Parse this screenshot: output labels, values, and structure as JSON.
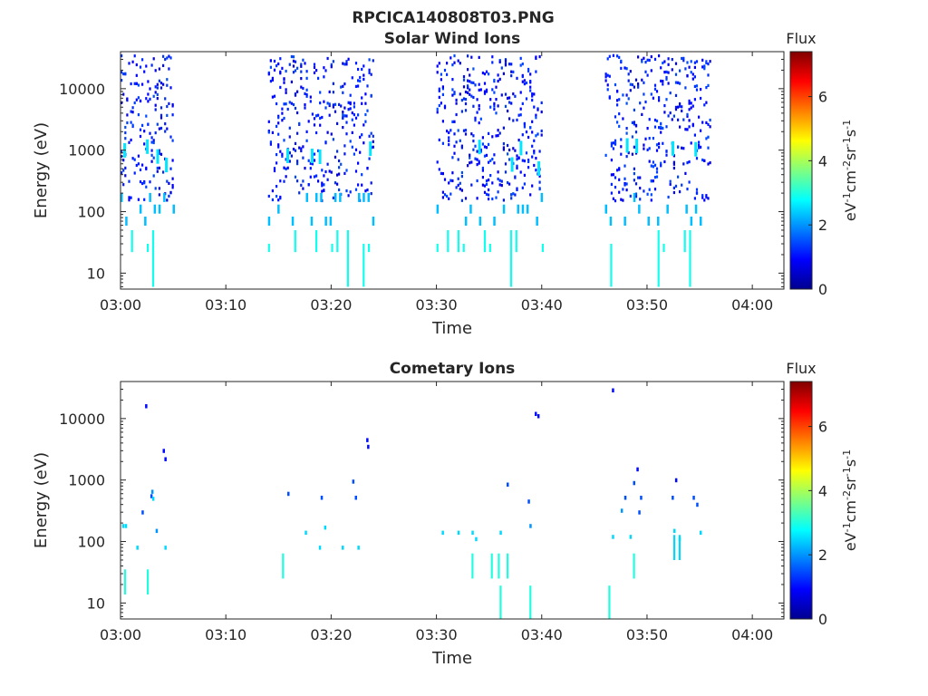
{
  "figure": {
    "title": "RPCICA140808T03.PNG"
  },
  "chart_data": [
    {
      "type": "heatmap",
      "title": "Solar Wind Ions",
      "xlabel": "Time",
      "ylabel": "Energy (eV)",
      "x_ticks": [
        "03:00",
        "03:10",
        "03:20",
        "03:30",
        "03:40",
        "03:50",
        "04:00"
      ],
      "y_ticks": [
        "10",
        "100",
        "1000",
        "10000"
      ],
      "y_scale": "log",
      "xlim": [
        "03:00",
        "04:03"
      ],
      "ylim": [
        5.5,
        40000
      ],
      "colorbar": {
        "label": "Flux",
        "unit": "eV-1cm-2sr-1s-1",
        "range": [
          0,
          7.4
        ],
        "ticks": [
          "0",
          "2",
          "4",
          "6"
        ]
      },
      "bursts": [
        {
          "from": "03:00",
          "to": "03:05"
        },
        {
          "from": "03:14",
          "to": "03:24"
        },
        {
          "from": "03:30",
          "to": "03:40"
        },
        {
          "from": "03:46",
          "to": "03:56"
        }
      ],
      "flux_typical": {
        "energy_above_150eV": 1.0,
        "energy_above_150eV_peaks": 2.5,
        "energy_below_150eV": 2.8
      }
    },
    {
      "type": "heatmap",
      "title": "Cometary Ions",
      "xlabel": "Time",
      "ylabel": "Energy (eV)",
      "x_ticks": [
        "03:00",
        "03:10",
        "03:20",
        "03:30",
        "03:40",
        "03:50",
        "04:00"
      ],
      "y_ticks": [
        "10",
        "100",
        "1000",
        "10000"
      ],
      "y_scale": "log",
      "xlim": [
        "03:00",
        "04:03"
      ],
      "ylim": [
        5.5,
        40000
      ],
      "colorbar": {
        "label": "Flux",
        "unit": "eV-1cm-2sr-1s-1",
        "range": [
          0,
          7.4
        ],
        "ticks": [
          "0",
          "2",
          "4",
          "6"
        ]
      },
      "points": [
        {
          "t": "03:00:10",
          "e": 180,
          "f": 2.5
        },
        {
          "t": "03:00:25",
          "e": 180,
          "f": 2.5
        },
        {
          "t": "03:02:20",
          "e": 16000,
          "f": 1.0
        },
        {
          "t": "03:02:50",
          "e": 550,
          "f": 1.5
        },
        {
          "t": "03:02:55",
          "e": 650,
          "f": 2.0
        },
        {
          "t": "03:03:00",
          "e": 500,
          "f": 2.5
        },
        {
          "t": "03:04:00",
          "e": 3000,
          "f": 1.0
        },
        {
          "t": "03:04:10",
          "e": 2200,
          "f": 1.0
        },
        {
          "t": "03:02:00",
          "e": 300,
          "f": 1.5
        },
        {
          "t": "03:03:20",
          "e": 150,
          "f": 2.0
        },
        {
          "t": "03:04:10",
          "e": 80,
          "f": 2.5
        },
        {
          "t": "03:01:30",
          "e": 80,
          "f": 2.5
        },
        {
          "t": "03:15:50",
          "e": 600,
          "f": 1.5
        },
        {
          "t": "03:17:30",
          "e": 140,
          "f": 2.5
        },
        {
          "t": "03:19:00",
          "e": 520,
          "f": 1.5
        },
        {
          "t": "03:19:20",
          "e": 170,
          "f": 2.5
        },
        {
          "t": "03:22:00",
          "e": 950,
          "f": 1.5
        },
        {
          "t": "03:22:15",
          "e": 520,
          "f": 1.5
        },
        {
          "t": "03:23:20",
          "e": 4500,
          "f": 1.0
        },
        {
          "t": "03:23:25",
          "e": 3500,
          "f": 1.0
        },
        {
          "t": "03:18:50",
          "e": 80,
          "f": 2.5
        },
        {
          "t": "03:21:00",
          "e": 80,
          "f": 2.5
        },
        {
          "t": "03:22:30",
          "e": 80,
          "f": 2.5
        },
        {
          "t": "03:30:30",
          "e": 140,
          "f": 2.5
        },
        {
          "t": "03:32:00",
          "e": 140,
          "f": 2.5
        },
        {
          "t": "03:33:20",
          "e": 140,
          "f": 2.5
        },
        {
          "t": "03:33:40",
          "e": 110,
          "f": 2.5
        },
        {
          "t": "03:36:00",
          "e": 140,
          "f": 2.5
        },
        {
          "t": "03:36:40",
          "e": 850,
          "f": 1.5
        },
        {
          "t": "03:38:40",
          "e": 450,
          "f": 1.5
        },
        {
          "t": "03:38:50",
          "e": 180,
          "f": 2.0
        },
        {
          "t": "03:39:20",
          "e": 12000,
          "f": 1.0
        },
        {
          "t": "03:39:35",
          "e": 11000,
          "f": 1.0
        },
        {
          "t": "03:46:40",
          "e": 29000,
          "f": 1.0
        },
        {
          "t": "03:46:40",
          "e": 120,
          "f": 2.5
        },
        {
          "t": "03:47:30",
          "e": 320,
          "f": 2.0
        },
        {
          "t": "03:47:50",
          "e": 520,
          "f": 1.5
        },
        {
          "t": "03:48:20",
          "e": 120,
          "f": 2.5
        },
        {
          "t": "03:48:40",
          "e": 900,
          "f": 1.5
        },
        {
          "t": "03:49:00",
          "e": 1500,
          "f": 1.0
        },
        {
          "t": "03:49:10",
          "e": 300,
          "f": 1.5
        },
        {
          "t": "03:49:20",
          "e": 520,
          "f": 1.5
        },
        {
          "t": "03:52:20",
          "e": 520,
          "f": 1.5
        },
        {
          "t": "03:52:40",
          "e": 1000,
          "f": 1.0
        },
        {
          "t": "03:52:30",
          "e": 150,
          "f": 2.5
        },
        {
          "t": "03:53:00",
          "e": 110,
          "f": 2.5
        },
        {
          "t": "03:54:20",
          "e": 520,
          "f": 1.5
        },
        {
          "t": "03:54:40",
          "e": 400,
          "f": 1.5
        },
        {
          "t": "03:55:00",
          "e": 140,
          "f": 2.5
        }
      ],
      "low_energy_lines": [
        {
          "t": "03:00:20",
          "e": 22,
          "f": 3.0
        },
        {
          "t": "03:02:30",
          "e": 22,
          "f": 3.0
        },
        {
          "t": "03:15:20",
          "e": 40,
          "f": 3.0
        },
        {
          "t": "03:33:20",
          "e": 40,
          "f": 3.0
        },
        {
          "t": "03:35:10",
          "e": 40,
          "f": 3.0
        },
        {
          "t": "03:35:50",
          "e": 40,
          "f": 3.0
        },
        {
          "t": "03:36:40",
          "e": 40,
          "f": 3.0
        },
        {
          "t": "03:36:00",
          "e": 12,
          "f": 3.0
        },
        {
          "t": "03:38:50",
          "e": 12,
          "f": 3.0
        },
        {
          "t": "03:46:20",
          "e": 12,
          "f": 3.0
        },
        {
          "t": "03:48:40",
          "e": 40,
          "f": 3.0
        },
        {
          "t": "03:52:30",
          "e": 80,
          "f": 2.5
        },
        {
          "t": "03:53:00",
          "e": 80,
          "f": 2.5
        }
      ]
    }
  ]
}
